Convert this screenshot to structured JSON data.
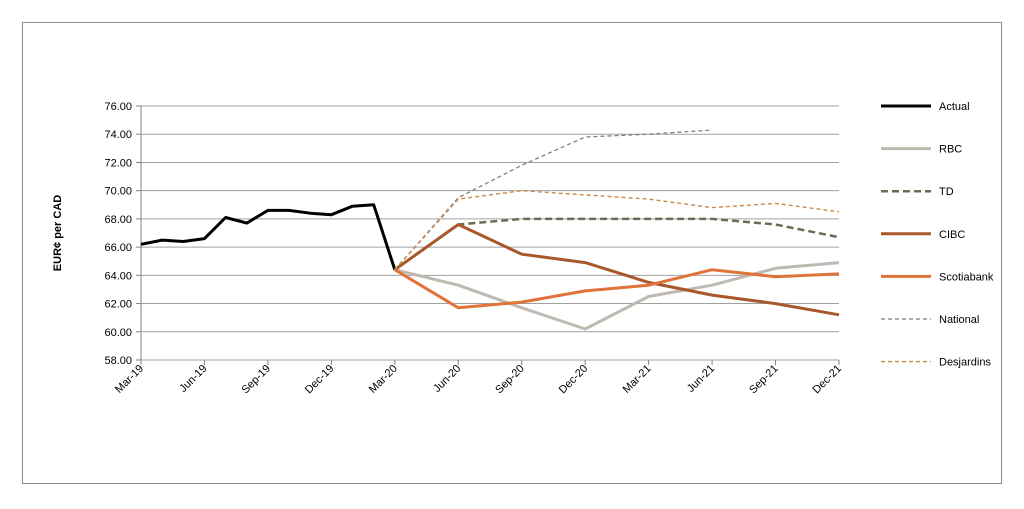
{
  "chart_data": {
    "type": "line",
    "ylabel": "EUR¢ per CAD",
    "ylim": [
      58,
      76
    ],
    "ytick_step": 2,
    "grid": true,
    "legend_position": "right",
    "x_ticks": [
      "Mar-19",
      "Jun-19",
      "Sep-19",
      "Dec-19",
      "Mar-20",
      "Jun-20",
      "Sep-20",
      "Dec-20",
      "Mar-21",
      "Jun-21",
      "Sep-21",
      "Dec-21"
    ],
    "x_range": [
      "Mar-19",
      "Dec-21"
    ],
    "series": [
      {
        "name": "Actual",
        "color": "#000000",
        "dash": "solid",
        "width": 3,
        "points": [
          [
            "Mar-19",
            66.2
          ],
          [
            "Apr-19",
            66.5
          ],
          [
            "May-19",
            66.4
          ],
          [
            "Jun-19",
            66.6
          ],
          [
            "Jul-19",
            68.1
          ],
          [
            "Aug-19",
            67.7
          ],
          [
            "Sep-19",
            68.6
          ],
          [
            "Oct-19",
            68.6
          ],
          [
            "Nov-19",
            68.4
          ],
          [
            "Dec-19",
            68.3
          ],
          [
            "Jan-20",
            68.9
          ],
          [
            "Feb-20",
            69.0
          ],
          [
            "Mar-20",
            64.4
          ]
        ]
      },
      {
        "name": "RBC",
        "color": "#bfbab1",
        "dash": "solid",
        "width": 3,
        "points": [
          [
            "Mar-20",
            64.4
          ],
          [
            "Jun-20",
            63.3
          ],
          [
            "Sep-20",
            61.7
          ],
          [
            "Dec-20",
            60.2
          ],
          [
            "Mar-21",
            62.5
          ],
          [
            "Jun-21",
            63.3
          ],
          [
            "Sep-21",
            64.5
          ],
          [
            "Dec-21",
            64.9
          ]
        ]
      },
      {
        "name": "TD",
        "color": "#6e6a55",
        "dash": "dashed",
        "width": 2.5,
        "points": [
          [
            "Mar-20",
            64.4
          ],
          [
            "Jun-20",
            67.6
          ],
          [
            "Sep-20",
            68.0
          ],
          [
            "Dec-20",
            68.0
          ],
          [
            "Mar-21",
            68.0
          ],
          [
            "Jun-21",
            68.0
          ],
          [
            "Sep-21",
            67.6
          ],
          [
            "Dec-21",
            66.7
          ]
        ]
      },
      {
        "name": "CIBC",
        "color": "#a8582a",
        "dash": "solid",
        "width": 3,
        "points": [
          [
            "Mar-20",
            64.4
          ],
          [
            "Jun-20",
            67.6
          ],
          [
            "Sep-20",
            65.5
          ],
          [
            "Dec-20",
            64.9
          ],
          [
            "Mar-21",
            63.5
          ],
          [
            "Jun-21",
            62.6
          ],
          [
            "Sep-21",
            62.0
          ],
          [
            "Dec-21",
            61.2
          ]
        ]
      },
      {
        "name": "Scotiabank",
        "color": "#e0733a",
        "dash": "solid",
        "width": 3,
        "points": [
          [
            "Mar-20",
            64.4
          ],
          [
            "Jun-20",
            61.7
          ],
          [
            "Sep-20",
            62.1
          ],
          [
            "Dec-20",
            62.9
          ],
          [
            "Mar-21",
            63.3
          ],
          [
            "Jun-21",
            64.4
          ],
          [
            "Sep-21",
            63.9
          ],
          [
            "Dec-21",
            64.1
          ]
        ]
      },
      {
        "name": "National",
        "color": "#77777f",
        "dash": "dashed-thin",
        "width": 1.2,
        "points": [
          [
            "Mar-20",
            64.4
          ],
          [
            "Jun-20",
            69.5
          ],
          [
            "Sep-20",
            71.8
          ],
          [
            "Dec-20",
            73.8
          ],
          [
            "Mar-21",
            74.0
          ],
          [
            "Jun-21",
            74.3
          ]
        ]
      },
      {
        "name": "Desjardins",
        "color": "#c98a4e",
        "dash": "dashed-thin",
        "width": 1.4,
        "points": [
          [
            "Mar-20",
            64.4
          ],
          [
            "Jun-20",
            69.4
          ],
          [
            "Sep-20",
            70.0
          ],
          [
            "Dec-20",
            69.7
          ],
          [
            "Mar-21",
            69.4
          ],
          [
            "Jun-21",
            68.8
          ],
          [
            "Sep-21",
            69.1
          ],
          [
            "Dec-21",
            68.5
          ]
        ]
      }
    ]
  }
}
